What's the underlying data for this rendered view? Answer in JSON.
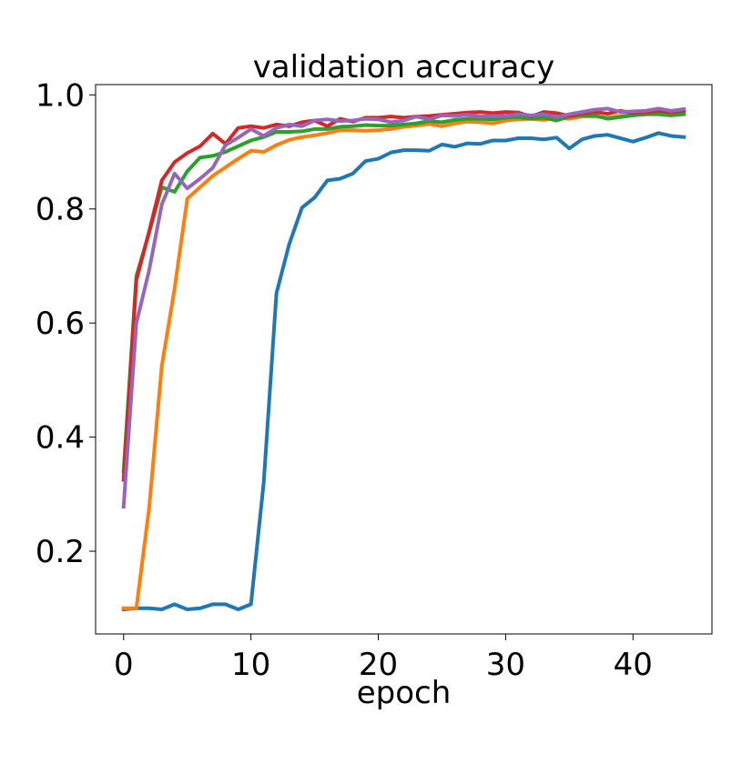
{
  "chart_data": {
    "type": "line",
    "title": "validation accuracy",
    "xlabel": "epoch",
    "ylabel": "",
    "xlim": [
      -2.2,
      46.2
    ],
    "ylim": [
      0.055,
      1.018
    ],
    "x_ticks": [
      0,
      10,
      20,
      30,
      40
    ],
    "y_ticks": [
      0.2,
      0.4,
      0.6,
      0.8,
      1.0
    ],
    "x_tick_labels": [
      "0",
      "10",
      "20",
      "30",
      "40"
    ],
    "y_tick_labels": [
      "0.2",
      "0.4",
      "0.6",
      "0.8",
      "1.0"
    ],
    "grid": false,
    "legend": "none",
    "series": [
      {
        "color": "#1f77b4",
        "values": [
          0.098,
          0.1,
          0.1,
          0.098,
          0.107,
          0.098,
          0.1,
          0.107,
          0.107,
          0.098,
          0.107,
          0.32,
          0.652,
          0.738,
          0.802,
          0.82,
          0.85,
          0.853,
          0.862,
          0.884,
          0.888,
          0.899,
          0.903,
          0.903,
          0.902,
          0.913,
          0.909,
          0.915,
          0.914,
          0.92,
          0.92,
          0.924,
          0.924,
          0.922,
          0.925,
          0.906,
          0.922,
          0.928,
          0.93,
          0.924,
          0.918,
          0.925,
          0.933,
          0.928,
          0.926
        ]
      },
      {
        "color": "#ff7f0e",
        "values": [
          0.1,
          0.1,
          0.275,
          0.525,
          0.66,
          0.818,
          0.838,
          0.858,
          0.873,
          0.888,
          0.902,
          0.9,
          0.912,
          0.921,
          0.926,
          0.929,
          0.933,
          0.938,
          0.938,
          0.937,
          0.938,
          0.94,
          0.944,
          0.946,
          0.949,
          0.945,
          0.95,
          0.953,
          0.952,
          0.95,
          0.955,
          0.957,
          0.958,
          0.956,
          0.96,
          0.958,
          0.962,
          0.962,
          0.96,
          0.963,
          0.965,
          0.966,
          0.968,
          0.965,
          0.968
        ]
      },
      {
        "color": "#2ca02c",
        "values": [
          0.34,
          0.682,
          0.758,
          0.838,
          0.83,
          0.866,
          0.89,
          0.893,
          0.9,
          0.91,
          0.92,
          0.926,
          0.935,
          0.935,
          0.936,
          0.94,
          0.94,
          0.944,
          0.945,
          0.947,
          0.946,
          0.946,
          0.948,
          0.95,
          0.954,
          0.952,
          0.956,
          0.958,
          0.958,
          0.957,
          0.96,
          0.961,
          0.958,
          0.96,
          0.955,
          0.962,
          0.964,
          0.964,
          0.958,
          0.961,
          0.964,
          0.966,
          0.966,
          0.964,
          0.966
        ]
      },
      {
        "color": "#d62728",
        "values": [
          0.325,
          0.675,
          0.76,
          0.85,
          0.882,
          0.898,
          0.91,
          0.932,
          0.914,
          0.942,
          0.945,
          0.942,
          0.948,
          0.945,
          0.952,
          0.955,
          0.945,
          0.958,
          0.953,
          0.96,
          0.96,
          0.962,
          0.96,
          0.962,
          0.963,
          0.965,
          0.967,
          0.969,
          0.97,
          0.968,
          0.97,
          0.969,
          0.962,
          0.97,
          0.968,
          0.963,
          0.967,
          0.97,
          0.967,
          0.972,
          0.968,
          0.97,
          0.972,
          0.97,
          0.972
        ]
      },
      {
        "color": "#9467bd",
        "values": [
          0.278,
          0.6,
          0.692,
          0.808,
          0.862,
          0.836,
          0.853,
          0.872,
          0.912,
          0.925,
          0.94,
          0.928,
          0.942,
          0.948,
          0.945,
          0.955,
          0.957,
          0.954,
          0.955,
          0.958,
          0.957,
          0.952,
          0.955,
          0.962,
          0.957,
          0.964,
          0.963,
          0.965,
          0.962,
          0.963,
          0.963,
          0.966,
          0.964,
          0.966,
          0.961,
          0.966,
          0.97,
          0.974,
          0.976,
          0.97,
          0.971,
          0.972,
          0.976,
          0.972,
          0.975
        ]
      }
    ]
  }
}
